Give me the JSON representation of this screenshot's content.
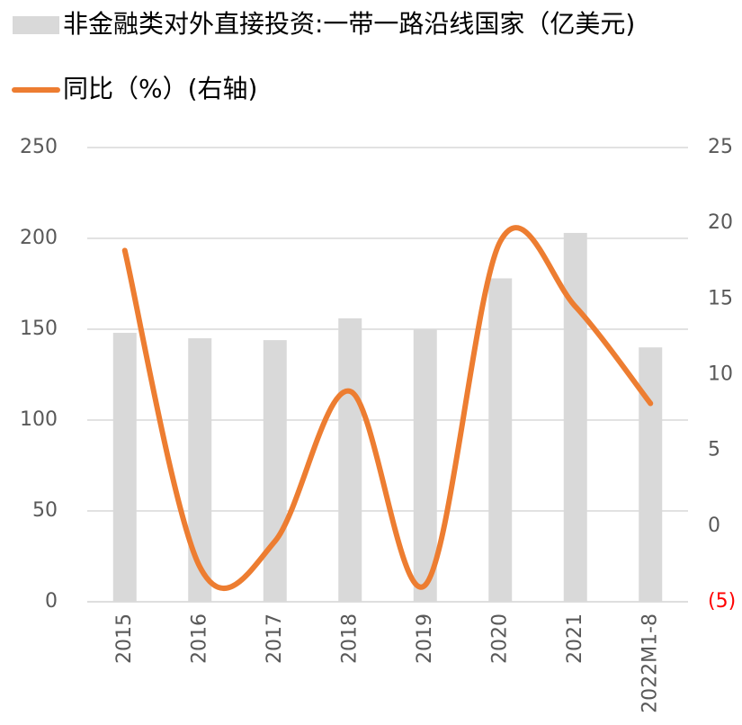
{
  "chart_data": {
    "type": "bar_line",
    "categories": [
      "2015",
      "2016",
      "2017",
      "2018",
      "2019",
      "2020",
      "2021",
      "2022M1-8"
    ],
    "series": [
      {
        "name": "非金融类对外直接投资:一带一路沿线国家（亿美元)",
        "type": "bar",
        "color": "#d9d9d9",
        "values": [
          148,
          145,
          144,
          156,
          150,
          178,
          203,
          140
        ]
      },
      {
        "name": "同比（%）(右轴)",
        "type": "line",
        "axis": "y2",
        "color": "#ed7d31",
        "smooth": true,
        "values": [
          18.2,
          -2.7,
          -1,
          8.9,
          -3.9,
          18.8,
          14.5,
          8.1
        ]
      }
    ],
    "ylim": [
      0,
      250
    ],
    "yticks": [
      0,
      50,
      100,
      150,
      200,
      250
    ],
    "y2lim": [
      -5,
      25
    ],
    "y2ticks": [
      {
        "value": -5,
        "label": "(5)"
      },
      0,
      5,
      10,
      15,
      20,
      25
    ],
    "negative_tick_color": "#ff0000",
    "grid": true,
    "legend": "top-left"
  }
}
